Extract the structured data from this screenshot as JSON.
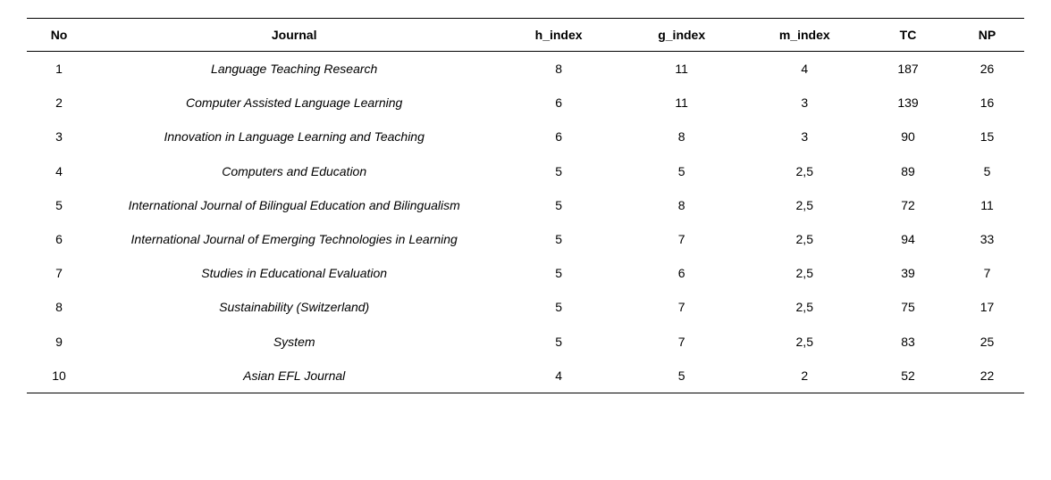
{
  "table": {
    "columns": [
      "No",
      "Journal",
      "h_index",
      "g_index",
      "m_index",
      "TC",
      "NP"
    ],
    "rows": [
      {
        "no": "1",
        "journal": "Language Teaching Research",
        "h": "8",
        "g": "11",
        "m": "4",
        "tc": "187",
        "np": "26"
      },
      {
        "no": "2",
        "journal": "Computer Assisted Language Learning",
        "h": "6",
        "g": "11",
        "m": "3",
        "tc": "139",
        "np": "16"
      },
      {
        "no": "3",
        "journal": "Innovation in Language Learning and Teaching",
        "h": "6",
        "g": "8",
        "m": "3",
        "tc": "90",
        "np": "15"
      },
      {
        "no": "4",
        "journal": "Computers and Education",
        "h": "5",
        "g": "5",
        "m": "2,5",
        "tc": "89",
        "np": "5"
      },
      {
        "no": "5",
        "journal": "International Journal of Bilingual Education and Bilingualism",
        "h": "5",
        "g": "8",
        "m": "2,5",
        "tc": "72",
        "np": "11"
      },
      {
        "no": "6",
        "journal": "International Journal of Emerging Technologies in Learning",
        "h": "5",
        "g": "7",
        "m": "2,5",
        "tc": "94",
        "np": "33"
      },
      {
        "no": "7",
        "journal": "Studies in Educational Evaluation",
        "h": "5",
        "g": "6",
        "m": "2,5",
        "tc": "39",
        "np": "7"
      },
      {
        "no": "8",
        "journal": "Sustainability (Switzerland)",
        "h": "5",
        "g": "7",
        "m": "2,5",
        "tc": "75",
        "np": "17"
      },
      {
        "no": "9",
        "journal": "System",
        "h": "5",
        "g": "7",
        "m": "2,5",
        "tc": "83",
        "np": "25"
      },
      {
        "no": "10",
        "journal": "Asian EFL Journal",
        "h": "4",
        "g": "5",
        "m": "2",
        "tc": "52",
        "np": "22"
      }
    ]
  }
}
